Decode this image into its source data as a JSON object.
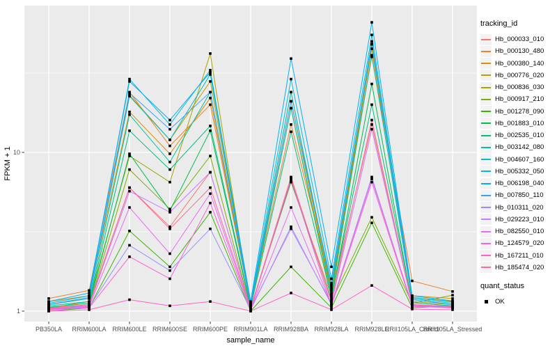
{
  "chart_data": {
    "type": "line",
    "title": "",
    "xlabel": "sample_name",
    "ylabel": "FPKM + 1",
    "x_categories": [
      "PB350LA",
      "RRIM600LA",
      "RRIM600LE",
      "RRIM600SE",
      "RRIM600PE",
      "RRIM901LA",
      "RRIM928BA",
      "RRIM928LA",
      "RRIM928LE",
      "RRII105LA_Control",
      "RRII105LA_Stressed"
    ],
    "y_axis": {
      "scale": "log10",
      "tick_labels": [
        "1",
        "10"
      ],
      "tick_values": [
        1,
        10
      ],
      "minor_tick_values": [
        3.1623,
        31.623
      ],
      "approx_range": [
        0.86,
        85
      ]
    },
    "legend": {
      "title": "tracking_id",
      "position": "right"
    },
    "quant_status": {
      "title": "quant_status",
      "items": [
        {
          "label": "OK",
          "marker": "filled-square",
          "color": "#000000"
        }
      ]
    },
    "point": {
      "shape": "filled-square",
      "color": "#000000"
    },
    "colors": {
      "panel_bg": "#EBEBEB",
      "grid": "#FFFFFF",
      "axis_text": "#4D4D4D",
      "title_text": "#000000"
    },
    "series": [
      {
        "name": "Hb_000033_010",
        "color": "#F8766D",
        "values": [
          1.05,
          1.1,
          6.0,
          3.4,
          7.5,
          1.05,
          6.5,
          1.25,
          15,
          1.1,
          1.05
        ]
      },
      {
        "name": "Hb_000130_480",
        "color": "#EA8331",
        "values": [
          1.2,
          1.35,
          24,
          11,
          20,
          1.1,
          15,
          1.45,
          40,
          1.55,
          1.33
        ]
      },
      {
        "name": "Hb_000380_140",
        "color": "#D89000",
        "values": [
          1.15,
          1.25,
          18,
          9.8,
          22,
          1.08,
          21,
          1.35,
          45,
          1.25,
          1.2
        ]
      },
      {
        "name": "Hb_000776_020",
        "color": "#C09B00",
        "values": [
          1.1,
          1.2,
          23,
          12,
          28,
          1.1,
          24,
          1.3,
          50,
          1.22,
          1.15
        ]
      },
      {
        "name": "Hb_000836_030",
        "color": "#A3A500",
        "values": [
          1.05,
          1.15,
          9.5,
          6.5,
          42,
          1.05,
          19,
          1.2,
          48,
          1.15,
          1.1
        ]
      },
      {
        "name": "Hb_000917_210",
        "color": "#7CAE00",
        "values": [
          1.02,
          1.08,
          7.8,
          4.4,
          9.5,
          1.03,
          6.9,
          1.15,
          3.9,
          1.12,
          1.26
        ]
      },
      {
        "name": "Hb_001278_090",
        "color": "#39B600",
        "values": [
          1.0,
          1.05,
          3.2,
          1.9,
          4.2,
          1.0,
          1.9,
          1.05,
          3.6,
          1.05,
          1.08
        ]
      },
      {
        "name": "Hb_001883_010",
        "color": "#00BB4E",
        "values": [
          1.03,
          1.1,
          9.8,
          4.3,
          13.7,
          1.04,
          6.6,
          1.18,
          27,
          1.1,
          1.06
        ]
      },
      {
        "name": "Hb_002535_010",
        "color": "#00BF7D",
        "values": [
          1.06,
          1.12,
          13.7,
          7.8,
          14.7,
          1.06,
          13.5,
          1.22,
          20,
          1.13,
          1.08
        ]
      },
      {
        "name": "Hb_003142_080",
        "color": "#00C1A3",
        "values": [
          1.08,
          1.15,
          17.3,
          8.7,
          24,
          1.08,
          19,
          1.28,
          41,
          1.18,
          1.1
        ]
      },
      {
        "name": "Hb_004607_160",
        "color": "#00BFC4",
        "values": [
          1.1,
          1.2,
          22.6,
          12,
          31,
          1.1,
          24,
          1.4,
          50,
          1.2,
          1.12
        ]
      },
      {
        "name": "Hb_005332_050",
        "color": "#00BAE0",
        "values": [
          1.12,
          1.25,
          29,
          15,
          33,
          1.12,
          29,
          1.6,
          55,
          1.22,
          1.14
        ]
      },
      {
        "name": "Hb_006198_040",
        "color": "#00B0F6",
        "values": [
          1.15,
          1.3,
          28,
          16,
          32,
          1.15,
          39,
          1.9,
          66,
          1.25,
          1.16
        ]
      },
      {
        "name": "Hb_007850_110",
        "color": "#35A2FF",
        "values": [
          1.1,
          1.22,
          23.7,
          14,
          24,
          1.1,
          21,
          1.5,
          48,
          1.18,
          1.1
        ]
      },
      {
        "name": "Hb_010311_020",
        "color": "#9590FF",
        "values": [
          1.02,
          1.06,
          2.6,
          1.8,
          3.3,
          1.02,
          3.4,
          1.1,
          7.0,
          1.08,
          1.05
        ]
      },
      {
        "name": "Hb_029223_010",
        "color": "#C77CFF",
        "values": [
          1.04,
          1.08,
          5.7,
          4.2,
          7.5,
          1.04,
          3.3,
          1.12,
          14,
          1.1,
          1.07
        ]
      },
      {
        "name": "Hb_082550_010",
        "color": "#E76BF3",
        "values": [
          1.03,
          1.07,
          4.5,
          2.3,
          5.5,
          1.03,
          4.5,
          1.1,
          6.8,
          1.09,
          1.06
        ]
      },
      {
        "name": "Hb_124579_020",
        "color": "#FA62DB",
        "values": [
          1.02,
          1.05,
          2.2,
          1.6,
          4.8,
          1.02,
          6.8,
          1.08,
          6.5,
          1.07,
          1.05
        ]
      },
      {
        "name": "Hb_167211_010",
        "color": "#FF61C9",
        "values": [
          1.0,
          1.02,
          1.18,
          1.08,
          1.15,
          1.0,
          1.3,
          1.02,
          1.45,
          1.03,
          1.02
        ]
      },
      {
        "name": "Hb_185474_020",
        "color": "#FF6A98",
        "values": [
          1.04,
          1.1,
          6.0,
          3.3,
          6.0,
          1.04,
          7.0,
          1.15,
          16,
          1.1,
          1.07
        ]
      }
    ]
  }
}
